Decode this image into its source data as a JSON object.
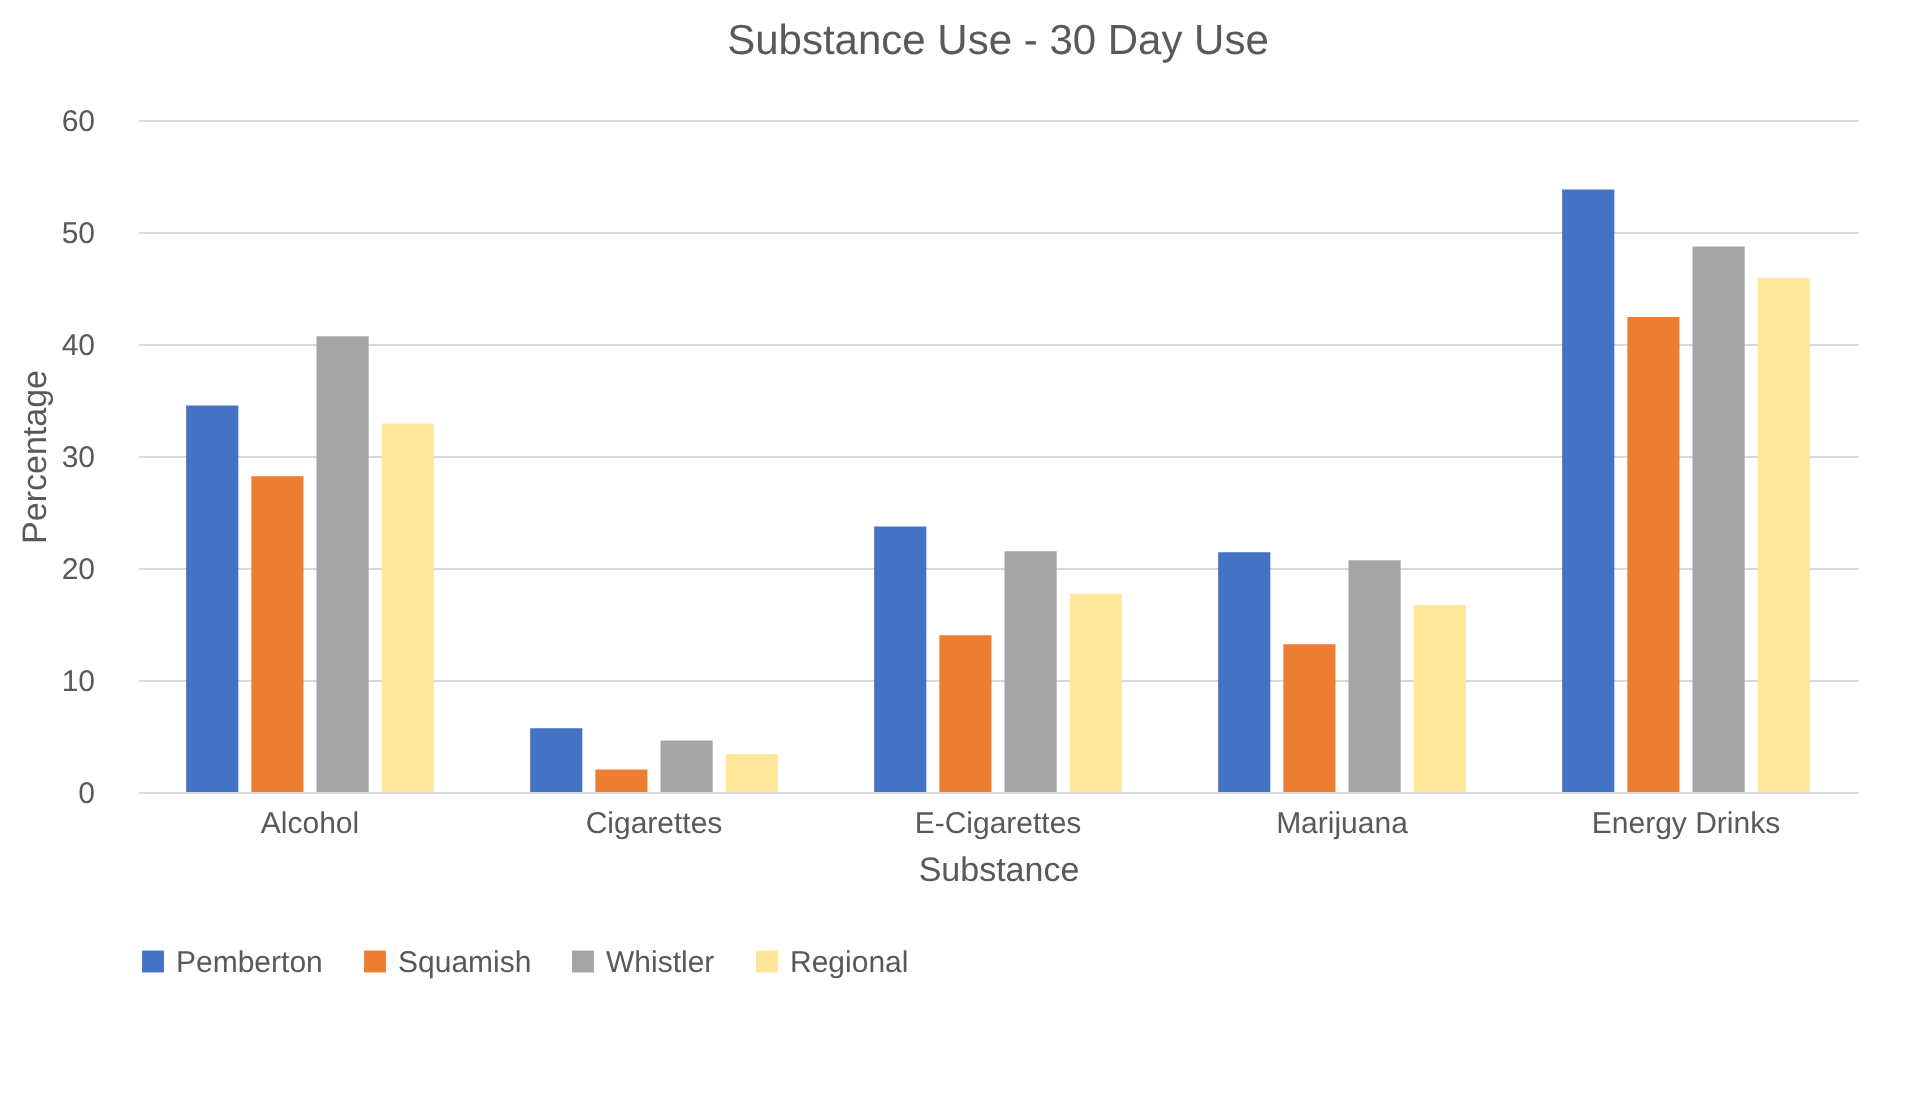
{
  "chart_data": {
    "type": "bar",
    "title": "Substance Use - 30 Day Use",
    "xlabel": "Substance",
    "ylabel": "Percentage",
    "categories": [
      "Alcohol",
      "Cigarettes",
      "E-Cigarettes",
      "Marijuana",
      "Energy Drinks"
    ],
    "series": [
      {
        "name": "Pemberton",
        "color": "#4472c4",
        "values": [
          34.5,
          5.7,
          23.7,
          21.4,
          53.8
        ]
      },
      {
        "name": "Squamish",
        "color": "#ed7d31",
        "values": [
          28.2,
          2.0,
          14.0,
          13.2,
          42.4
        ]
      },
      {
        "name": "Whistler",
        "color": "#a5a5a5",
        "values": [
          40.7,
          4.6,
          21.5,
          20.7,
          48.7
        ]
      },
      {
        "name": "Regional",
        "color": "#ffe699",
        "values": [
          32.9,
          3.4,
          17.7,
          16.7,
          45.9
        ]
      }
    ],
    "ylim": [
      0,
      60
    ],
    "yticks": [
      0,
      10,
      20,
      30,
      40,
      50,
      60
    ],
    "grid": "y",
    "legend": "bottom"
  }
}
